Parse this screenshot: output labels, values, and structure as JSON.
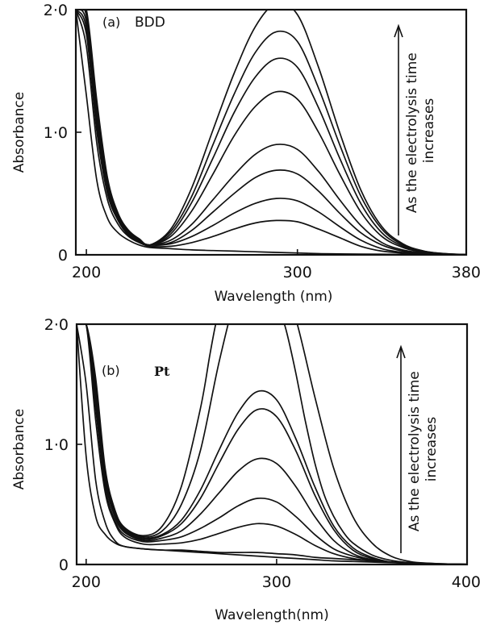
{
  "chart_data": [
    {
      "type": "line",
      "panel_label": "(a)",
      "electrode": "BDD",
      "xlabel": "Wavelength (nm)",
      "ylabel": "Absorbance",
      "xlim": [
        195,
        380
      ],
      "ylim": [
        0,
        2.0
      ],
      "x_ticks": [
        200,
        300,
        380
      ],
      "x_tick_labels": [
        "200",
        "300",
        "380"
      ],
      "y_ticks": [
        0,
        1.0,
        2.0
      ],
      "y_tick_labels": [
        "0",
        "1·0",
        "2·0"
      ],
      "annotation": "As the electrolysis time increases",
      "annotation_lines": [
        "As the electrolysis time",
        "increases"
      ],
      "grid": false,
      "series": [
        {
          "x": [
            195,
            200,
            205,
            210,
            215,
            220,
            225,
            230,
            240,
            250,
            260,
            270,
            280,
            290,
            300,
            310,
            320,
            330,
            340,
            350,
            360,
            370,
            380
          ],
          "y": [
            2.0,
            1.3,
            0.6,
            0.3,
            0.18,
            0.12,
            0.08,
            0.06,
            0.05,
            0.04,
            0.035,
            0.03,
            0.025,
            0.02,
            0.015,
            0.01,
            0.008,
            0.006,
            0.005,
            0.004,
            0.003,
            0.002,
            0.001
          ]
        },
        {
          "x": [
            195,
            200,
            205,
            210,
            215,
            220,
            225,
            230,
            240,
            250,
            260,
            270,
            280,
            290,
            300,
            310,
            320,
            330,
            340,
            350,
            360,
            370,
            380
          ],
          "y": [
            2.0,
            1.7,
            0.9,
            0.45,
            0.25,
            0.15,
            0.1,
            0.07,
            0.07,
            0.1,
            0.15,
            0.21,
            0.26,
            0.28,
            0.27,
            0.21,
            0.14,
            0.07,
            0.03,
            0.015,
            0.007,
            0.003,
            0.001
          ]
        },
        {
          "x": [
            195,
            200,
            205,
            210,
            215,
            220,
            225,
            230,
            240,
            250,
            260,
            270,
            280,
            290,
            300,
            310,
            320,
            330,
            340,
            350,
            360,
            370,
            380
          ],
          "y": [
            2.0,
            1.8,
            1.0,
            0.5,
            0.28,
            0.16,
            0.11,
            0.08,
            0.09,
            0.15,
            0.24,
            0.34,
            0.42,
            0.46,
            0.44,
            0.35,
            0.23,
            0.12,
            0.05,
            0.02,
            0.008,
            0.003,
            0.001
          ]
        },
        {
          "x": [
            195,
            200,
            205,
            210,
            215,
            220,
            225,
            230,
            240,
            250,
            260,
            270,
            280,
            290,
            300,
            310,
            320,
            330,
            340,
            350,
            360,
            370,
            380
          ],
          "y": [
            2.0,
            1.85,
            1.05,
            0.52,
            0.29,
            0.17,
            0.11,
            0.08,
            0.1,
            0.2,
            0.35,
            0.5,
            0.63,
            0.69,
            0.66,
            0.52,
            0.34,
            0.18,
            0.08,
            0.03,
            0.01,
            0.004,
            0.001
          ]
        },
        {
          "x": [
            195,
            200,
            205,
            210,
            215,
            220,
            225,
            230,
            240,
            250,
            260,
            270,
            280,
            290,
            300,
            310,
            320,
            330,
            340,
            350,
            360,
            370,
            380
          ],
          "y": [
            2.0,
            1.9,
            1.1,
            0.55,
            0.3,
            0.18,
            0.12,
            0.08,
            0.12,
            0.25,
            0.45,
            0.65,
            0.82,
            0.9,
            0.86,
            0.68,
            0.45,
            0.24,
            0.1,
            0.04,
            0.015,
            0.005,
            0.001
          ]
        },
        {
          "x": [
            195,
            200,
            205,
            210,
            215,
            220,
            225,
            230,
            240,
            250,
            260,
            270,
            280,
            290,
            300,
            310,
            320,
            330,
            340,
            350,
            360,
            370,
            380
          ],
          "y": [
            2.0,
            1.95,
            1.15,
            0.58,
            0.31,
            0.18,
            0.12,
            0.08,
            0.15,
            0.36,
            0.66,
            0.97,
            1.21,
            1.33,
            1.27,
            1.0,
            0.66,
            0.35,
            0.15,
            0.06,
            0.02,
            0.006,
            0.001
          ]
        },
        {
          "x": [
            195,
            200,
            205,
            210,
            215,
            220,
            225,
            230,
            240,
            250,
            260,
            270,
            280,
            290,
            300,
            310,
            320,
            330,
            340,
            350,
            360,
            370,
            380
          ],
          "y": [
            2.0,
            1.97,
            1.2,
            0.6,
            0.32,
            0.19,
            0.13,
            0.08,
            0.17,
            0.43,
            0.79,
            1.16,
            1.45,
            1.6,
            1.53,
            1.2,
            0.79,
            0.42,
            0.18,
            0.07,
            0.025,
            0.008,
            0.002
          ]
        },
        {
          "x": [
            195,
            200,
            205,
            210,
            215,
            220,
            225,
            230,
            240,
            250,
            260,
            270,
            280,
            290,
            300,
            310,
            320,
            330,
            340,
            350,
            360,
            370,
            380
          ],
          "y": [
            2.0,
            1.98,
            1.22,
            0.62,
            0.33,
            0.19,
            0.13,
            0.08,
            0.19,
            0.48,
            0.9,
            1.31,
            1.65,
            1.82,
            1.74,
            1.36,
            0.9,
            0.48,
            0.21,
            0.08,
            0.03,
            0.009,
            0.002
          ]
        },
        {
          "x": [
            195,
            200,
            205,
            210,
            215,
            220,
            225,
            230,
            240,
            250,
            260,
            270,
            280,
            290,
            300,
            310,
            320,
            330,
            340,
            350,
            360,
            370,
            380
          ],
          "y": [
            2.0,
            2.0,
            1.25,
            0.63,
            0.34,
            0.2,
            0.13,
            0.08,
            0.21,
            0.55,
            1.02,
            1.48,
            1.86,
            2.05,
            1.96,
            1.53,
            1.0,
            0.53,
            0.23,
            0.09,
            0.03,
            0.01,
            0.002
          ]
        }
      ]
    },
    {
      "type": "line",
      "panel_label": "(b)",
      "electrode": "Pt",
      "xlabel": "Wavelength(nm)",
      "ylabel": "Absorbance",
      "xlim": [
        195,
        400
      ],
      "ylim": [
        0,
        2.0
      ],
      "x_ticks": [
        200,
        300,
        400
      ],
      "x_tick_labels": [
        "200",
        "300",
        "400"
      ],
      "y_ticks": [
        0,
        1.0,
        2.0
      ],
      "y_tick_labels": [
        "0",
        "1·0",
        "2·0"
      ],
      "annotation": "As the electrolysis time increases",
      "annotation_lines": [
        "As the electrolysis time",
        "increases"
      ],
      "grid": false,
      "series": [
        {
          "x": [
            195,
            200,
            205,
            210,
            215,
            220,
            230,
            240,
            250,
            260,
            270,
            280,
            290,
            300,
            310,
            320,
            330,
            340,
            350,
            360,
            370,
            380,
            390,
            400
          ],
          "y": [
            2.0,
            0.9,
            0.4,
            0.25,
            0.18,
            0.15,
            0.13,
            0.12,
            0.11,
            0.1,
            0.09,
            0.08,
            0.07,
            0.06,
            0.05,
            0.04,
            0.03,
            0.025,
            0.02,
            0.015,
            0.01,
            0.007,
            0.004,
            0.002
          ]
        },
        {
          "x": [
            195,
            200,
            205,
            210,
            215,
            220,
            230,
            240,
            250,
            260,
            270,
            280,
            290,
            300,
            310,
            320,
            330,
            340,
            350,
            360,
            370,
            380,
            390,
            400
          ],
          "y": [
            2.0,
            1.5,
            0.7,
            0.35,
            0.2,
            0.15,
            0.13,
            0.12,
            0.12,
            0.11,
            0.1,
            0.1,
            0.1,
            0.09,
            0.08,
            0.06,
            0.05,
            0.04,
            0.03,
            0.02,
            0.015,
            0.01,
            0.005,
            0.002
          ]
        },
        {
          "x": [
            195,
            200,
            205,
            210,
            215,
            220,
            230,
            240,
            250,
            260,
            270,
            280,
            290,
            300,
            310,
            320,
            330,
            340,
            350,
            360,
            370,
            380,
            390,
            400
          ],
          "y": [
            2.0,
            2.0,
            1.2,
            0.6,
            0.35,
            0.23,
            0.17,
            0.17,
            0.18,
            0.21,
            0.26,
            0.31,
            0.34,
            0.32,
            0.25,
            0.16,
            0.09,
            0.05,
            0.03,
            0.02,
            0.01,
            0.005,
            0.003,
            0.001
          ]
        },
        {
          "x": [
            195,
            200,
            205,
            210,
            215,
            220,
            230,
            240,
            250,
            260,
            270,
            280,
            290,
            300,
            310,
            320,
            330,
            340,
            350,
            360,
            370,
            380,
            390,
            400
          ],
          "y": [
            2.0,
            2.0,
            1.3,
            0.65,
            0.37,
            0.25,
            0.19,
            0.2,
            0.23,
            0.3,
            0.39,
            0.49,
            0.55,
            0.52,
            0.4,
            0.25,
            0.13,
            0.07,
            0.035,
            0.02,
            0.01,
            0.005,
            0.003,
            0.001
          ]
        },
        {
          "x": [
            195,
            200,
            205,
            210,
            215,
            220,
            230,
            240,
            250,
            260,
            270,
            280,
            290,
            300,
            310,
            320,
            330,
            340,
            350,
            360,
            370,
            380,
            390,
            400
          ],
          "y": [
            2.0,
            2.0,
            1.35,
            0.7,
            0.4,
            0.27,
            0.2,
            0.22,
            0.28,
            0.42,
            0.6,
            0.78,
            0.88,
            0.84,
            0.65,
            0.4,
            0.2,
            0.09,
            0.04,
            0.02,
            0.01,
            0.005,
            0.003,
            0.001
          ]
        },
        {
          "x": [
            195,
            200,
            205,
            210,
            215,
            220,
            230,
            240,
            250,
            260,
            270,
            280,
            290,
            300,
            310,
            320,
            330,
            340,
            350,
            360,
            370,
            380,
            390,
            400
          ],
          "y": [
            2.0,
            2.0,
            1.4,
            0.73,
            0.42,
            0.28,
            0.21,
            0.24,
            0.34,
            0.55,
            0.85,
            1.13,
            1.29,
            1.23,
            0.95,
            0.58,
            0.29,
            0.12,
            0.05,
            0.02,
            0.01,
            0.005,
            0.003,
            0.001
          ]
        },
        {
          "x": [
            195,
            200,
            205,
            210,
            215,
            220,
            230,
            240,
            250,
            260,
            270,
            280,
            290,
            300,
            310,
            320,
            330,
            340,
            350,
            360,
            370,
            380,
            390,
            400
          ],
          "y": [
            2.0,
            2.0,
            1.45,
            0.75,
            0.43,
            0.29,
            0.22,
            0.25,
            0.37,
            0.62,
            0.96,
            1.27,
            1.44,
            1.37,
            1.05,
            0.65,
            0.32,
            0.14,
            0.06,
            0.02,
            0.01,
            0.005,
            0.003,
            0.001
          ]
        },
        {
          "x": [
            195,
            200,
            205,
            210,
            215,
            220,
            230,
            240,
            250,
            260,
            270,
            280,
            290,
            300,
            310,
            320,
            330,
            340,
            350,
            360,
            370,
            380,
            390,
            400
          ],
          "y": [
            2.0,
            2.0,
            1.5,
            0.78,
            0.45,
            0.3,
            0.23,
            0.28,
            0.5,
            0.95,
            1.7,
            2.3,
            2.6,
            2.5,
            2.05,
            1.4,
            0.8,
            0.4,
            0.18,
            0.07,
            0.025,
            0.01,
            0.004,
            0.001
          ]
        },
        {
          "x": [
            195,
            200,
            205,
            210,
            215,
            220,
            230,
            240,
            250,
            260,
            265,
            268,
            270,
            272
          ],
          "y": [
            2.0,
            2.0,
            1.55,
            0.8,
            0.46,
            0.31,
            0.24,
            0.32,
            0.65,
            1.3,
            1.75,
            2.0,
            2.1,
            2.2
          ]
        },
        {
          "x": [
            300,
            305,
            310,
            315,
            320,
            325,
            330,
            335,
            340,
            350,
            360,
            370,
            380,
            390,
            400
          ],
          "y": [
            2.2,
            1.95,
            1.6,
            1.2,
            0.85,
            0.58,
            0.4,
            0.27,
            0.18,
            0.08,
            0.035,
            0.015,
            0.007,
            0.003,
            0.001
          ]
        }
      ]
    }
  ]
}
